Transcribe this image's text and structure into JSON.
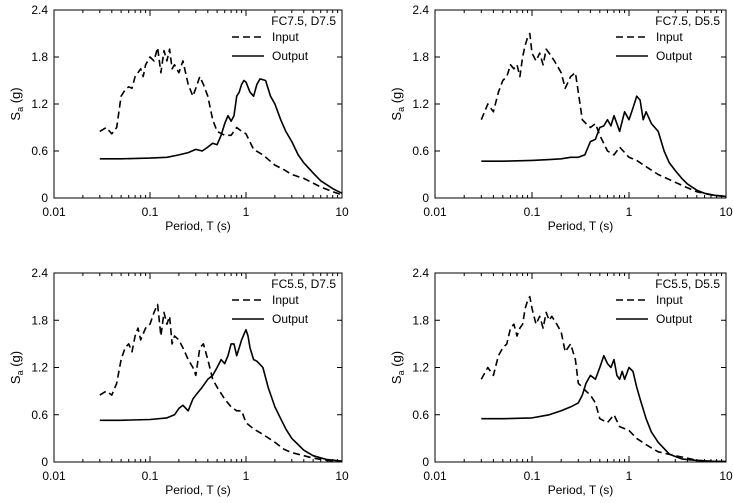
{
  "chart_data": [
    {
      "type": "line",
      "xscale": "log",
      "xlim": [
        0.01,
        10
      ],
      "ylim": [
        0,
        2.4
      ],
      "xticks": [
        0.01,
        0.1,
        1,
        10
      ],
      "xtick_labels": [
        "0.01",
        "0.1",
        "1",
        "10"
      ],
      "yticks": [
        0,
        0.6,
        1.2,
        1.8,
        2.4
      ],
      "ytick_labels": [
        "0",
        "0.6",
        "1.2",
        "1.8",
        "2.4"
      ],
      "xlabel": "Period, T (s)",
      "ylabel_main": "S",
      "ylabel_sub": "a",
      "ylabel_unit": " (g)",
      "legend_title": "FC7.5, D7.5",
      "legend_position": "top-right",
      "grid": false,
      "series": [
        {
          "name": "Input",
          "style": "dashed",
          "x": [
            0.03,
            0.035,
            0.04,
            0.045,
            0.05,
            0.055,
            0.06,
            0.065,
            0.07,
            0.075,
            0.08,
            0.085,
            0.09,
            0.1,
            0.11,
            0.12,
            0.13,
            0.14,
            0.15,
            0.16,
            0.17,
            0.18,
            0.2,
            0.22,
            0.25,
            0.28,
            0.3,
            0.33,
            0.36,
            0.4,
            0.45,
            0.5,
            0.6,
            0.7,
            0.8,
            0.9,
            1.0,
            1.2,
            1.5,
            2,
            2.5,
            3,
            4,
            5,
            6,
            8,
            10
          ],
          "y": [
            0.85,
            0.9,
            0.82,
            0.9,
            1.3,
            1.38,
            1.42,
            1.4,
            1.55,
            1.6,
            1.65,
            1.55,
            1.7,
            1.8,
            1.75,
            1.92,
            1.6,
            1.88,
            1.75,
            1.9,
            1.65,
            1.7,
            1.6,
            1.75,
            1.45,
            1.3,
            1.4,
            1.55,
            1.45,
            1.3,
            1.0,
            0.85,
            0.8,
            0.8,
            0.9,
            0.85,
            0.82,
            0.62,
            0.55,
            0.42,
            0.36,
            0.3,
            0.25,
            0.19,
            0.14,
            0.08,
            0.04
          ]
        },
        {
          "name": "Output",
          "style": "solid",
          "x": [
            0.03,
            0.05,
            0.1,
            0.15,
            0.2,
            0.25,
            0.3,
            0.35,
            0.4,
            0.45,
            0.5,
            0.55,
            0.6,
            0.65,
            0.7,
            0.75,
            0.8,
            0.85,
            0.9,
            0.95,
            1.0,
            1.1,
            1.2,
            1.3,
            1.4,
            1.6,
            1.8,
            2.0,
            2.3,
            2.6,
            3.0,
            3.5,
            4,
            5,
            6,
            8,
            10
          ],
          "y": [
            0.5,
            0.5,
            0.51,
            0.52,
            0.55,
            0.58,
            0.62,
            0.6,
            0.65,
            0.7,
            0.68,
            0.8,
            0.95,
            1.05,
            0.98,
            1.05,
            1.3,
            1.35,
            1.45,
            1.5,
            1.48,
            1.35,
            1.3,
            1.45,
            1.52,
            1.5,
            1.3,
            1.2,
            1.0,
            0.85,
            0.72,
            0.55,
            0.45,
            0.32,
            0.22,
            0.12,
            0.06
          ]
        }
      ]
    },
    {
      "type": "line",
      "xscale": "log",
      "xlim": [
        0.01,
        10
      ],
      "ylim": [
        0,
        2.4
      ],
      "xticks": [
        0.01,
        0.1,
        1,
        10
      ],
      "xtick_labels": [
        "0.01",
        "0.1",
        "1",
        "10"
      ],
      "yticks": [
        0,
        0.6,
        1.2,
        1.8,
        2.4
      ],
      "ytick_labels": [
        "0",
        "0.6",
        "1.2",
        "1.8",
        "2.4"
      ],
      "xlabel": "Period, T (s)",
      "ylabel_main": "S",
      "ylabel_sub": "a",
      "ylabel_unit": " (g)",
      "legend_title": "FC7.5, D5.5",
      "legend_position": "top-right",
      "grid": false,
      "series": [
        {
          "name": "Input",
          "style": "dashed",
          "x": [
            0.03,
            0.035,
            0.04,
            0.045,
            0.05,
            0.055,
            0.06,
            0.065,
            0.07,
            0.075,
            0.08,
            0.085,
            0.09,
            0.095,
            0.1,
            0.11,
            0.12,
            0.13,
            0.14,
            0.15,
            0.17,
            0.2,
            0.22,
            0.25,
            0.28,
            0.3,
            0.33,
            0.36,
            0.4,
            0.45,
            0.5,
            0.6,
            0.7,
            0.8,
            1.0,
            1.2,
            1.5,
            2,
            3,
            4,
            5,
            7,
            10
          ],
          "y": [
            1.0,
            1.2,
            1.1,
            1.35,
            1.5,
            1.55,
            1.7,
            1.65,
            1.7,
            1.55,
            1.8,
            1.95,
            2.05,
            2.1,
            1.85,
            1.75,
            1.85,
            1.7,
            1.9,
            1.85,
            1.75,
            1.6,
            1.4,
            1.55,
            1.6,
            1.35,
            1.0,
            0.95,
            0.9,
            0.95,
            0.8,
            0.6,
            0.55,
            0.65,
            0.52,
            0.48,
            0.4,
            0.3,
            0.2,
            0.13,
            0.08,
            0.04,
            0.02
          ]
        },
        {
          "name": "Output",
          "style": "solid",
          "x": [
            0.03,
            0.05,
            0.1,
            0.15,
            0.2,
            0.25,
            0.3,
            0.35,
            0.4,
            0.45,
            0.5,
            0.55,
            0.6,
            0.65,
            0.7,
            0.75,
            0.8,
            0.9,
            1.0,
            1.1,
            1.2,
            1.3,
            1.4,
            1.5,
            1.7,
            2.0,
            2.3,
            2.6,
            3,
            3.5,
            4,
            5,
            6,
            8,
            10
          ],
          "y": [
            0.47,
            0.47,
            0.48,
            0.49,
            0.5,
            0.52,
            0.52,
            0.55,
            0.72,
            0.75,
            0.9,
            0.92,
            1.0,
            0.92,
            1.05,
            0.95,
            0.85,
            1.1,
            1.0,
            1.15,
            1.3,
            1.25,
            1.0,
            1.1,
            0.95,
            0.85,
            0.6,
            0.45,
            0.35,
            0.25,
            0.18,
            0.1,
            0.06,
            0.03,
            0.02
          ]
        }
      ]
    },
    {
      "type": "line",
      "xscale": "log",
      "xlim": [
        0.01,
        10
      ],
      "ylim": [
        0,
        2.4
      ],
      "xticks": [
        0.01,
        0.1,
        1,
        10
      ],
      "xtick_labels": [
        "0.01",
        "0.1",
        "1",
        "10"
      ],
      "yticks": [
        0,
        0.6,
        1.2,
        1.8,
        2.4
      ],
      "ytick_labels": [
        "0",
        "0.6",
        "1.2",
        "1.8",
        "2.4"
      ],
      "xlabel": "Period, T (s)",
      "ylabel_main": "S",
      "ylabel_sub": "a",
      "ylabel_unit": " (g)",
      "legend_title": "FC5.5, D7.5",
      "legend_position": "top-right",
      "grid": false,
      "series": [
        {
          "name": "Input",
          "style": "dashed",
          "x": [
            0.03,
            0.035,
            0.04,
            0.045,
            0.05,
            0.055,
            0.06,
            0.065,
            0.07,
            0.075,
            0.08,
            0.09,
            0.1,
            0.11,
            0.12,
            0.13,
            0.14,
            0.15,
            0.16,
            0.17,
            0.18,
            0.2,
            0.22,
            0.25,
            0.28,
            0.3,
            0.33,
            0.36,
            0.4,
            0.45,
            0.5,
            0.6,
            0.7,
            0.8,
            0.9,
            1.0,
            1.2,
            1.5,
            2,
            2.5,
            3,
            4,
            5,
            7,
            10
          ],
          "y": [
            0.85,
            0.9,
            0.85,
            1.0,
            1.3,
            1.45,
            1.5,
            1.4,
            1.6,
            1.7,
            1.55,
            1.7,
            1.75,
            1.9,
            2.0,
            1.6,
            1.9,
            1.75,
            1.85,
            1.5,
            1.6,
            1.55,
            1.45,
            1.3,
            1.2,
            1.1,
            1.45,
            1.5,
            1.3,
            1.05,
            0.95,
            0.8,
            0.7,
            0.65,
            0.65,
            0.5,
            0.42,
            0.35,
            0.25,
            0.16,
            0.12,
            0.08,
            0.05,
            0.02,
            0.01
          ]
        },
        {
          "name": "Output",
          "style": "solid",
          "x": [
            0.03,
            0.05,
            0.1,
            0.15,
            0.18,
            0.2,
            0.22,
            0.25,
            0.28,
            0.3,
            0.35,
            0.4,
            0.45,
            0.5,
            0.55,
            0.6,
            0.65,
            0.7,
            0.75,
            0.8,
            0.85,
            0.9,
            0.95,
            1.0,
            1.05,
            1.1,
            1.2,
            1.3,
            1.5,
            1.7,
            2.0,
            2.3,
            2.6,
            3,
            3.5,
            4,
            5,
            7,
            10
          ],
          "y": [
            0.53,
            0.53,
            0.54,
            0.56,
            0.6,
            0.68,
            0.72,
            0.65,
            0.8,
            0.85,
            0.95,
            1.05,
            1.1,
            1.2,
            1.3,
            1.25,
            1.35,
            1.5,
            1.5,
            1.35,
            1.45,
            1.55,
            1.62,
            1.68,
            1.6,
            1.45,
            1.3,
            1.28,
            1.2,
            0.95,
            0.7,
            0.55,
            0.42,
            0.3,
            0.22,
            0.15,
            0.08,
            0.03,
            0.01
          ]
        }
      ]
    },
    {
      "type": "line",
      "xscale": "log",
      "xlim": [
        0.01,
        10
      ],
      "ylim": [
        0,
        2.4
      ],
      "xticks": [
        0.01,
        0.1,
        1,
        10
      ],
      "xtick_labels": [
        "0.01",
        "0.1",
        "1",
        "10"
      ],
      "yticks": [
        0,
        0.6,
        1.2,
        1.8,
        2.4
      ],
      "ytick_labels": [
        "0",
        "0.6",
        "1.2",
        "1.8",
        "2.4"
      ],
      "xlabel": "Period, T (s)",
      "ylabel_main": "S",
      "ylabel_sub": "a",
      "ylabel_unit": " (g)",
      "legend_title": "FC5.5, D5.5",
      "legend_position": "top-right",
      "grid": false,
      "series": [
        {
          "name": "Input",
          "style": "dashed",
          "x": [
            0.03,
            0.035,
            0.04,
            0.045,
            0.05,
            0.055,
            0.06,
            0.065,
            0.07,
            0.075,
            0.08,
            0.085,
            0.09,
            0.095,
            0.1,
            0.11,
            0.12,
            0.13,
            0.14,
            0.15,
            0.16,
            0.18,
            0.2,
            0.22,
            0.25,
            0.28,
            0.3,
            0.33,
            0.36,
            0.4,
            0.45,
            0.5,
            0.6,
            0.7,
            0.8,
            1.0,
            1.2,
            1.5,
            2,
            3,
            4,
            5,
            7,
            10
          ],
          "y": [
            1.05,
            1.2,
            1.1,
            1.35,
            1.45,
            1.5,
            1.7,
            1.75,
            1.6,
            1.7,
            1.75,
            1.95,
            2.05,
            2.1,
            1.95,
            1.75,
            1.85,
            1.7,
            1.9,
            1.8,
            1.85,
            1.75,
            1.65,
            1.4,
            1.5,
            1.3,
            1.0,
            0.95,
            0.9,
            0.85,
            0.75,
            0.55,
            0.5,
            0.6,
            0.45,
            0.4,
            0.3,
            0.22,
            0.13,
            0.08,
            0.05,
            0.02,
            0.01,
            0.005
          ]
        },
        {
          "name": "Output",
          "style": "solid",
          "x": [
            0.03,
            0.05,
            0.1,
            0.15,
            0.2,
            0.25,
            0.3,
            0.33,
            0.36,
            0.4,
            0.45,
            0.5,
            0.55,
            0.6,
            0.65,
            0.7,
            0.75,
            0.8,
            0.85,
            0.9,
            1.0,
            1.1,
            1.2,
            1.3,
            1.5,
            1.7,
            2.0,
            2.3,
            2.6,
            3,
            3.5,
            4,
            5,
            7,
            10
          ],
          "y": [
            0.55,
            0.55,
            0.56,
            0.6,
            0.65,
            0.7,
            0.75,
            0.85,
            1.0,
            1.1,
            1.05,
            1.2,
            1.35,
            1.25,
            1.2,
            1.3,
            1.1,
            1.05,
            1.15,
            1.05,
            1.2,
            1.15,
            0.95,
            0.8,
            0.55,
            0.38,
            0.25,
            0.17,
            0.1,
            0.07,
            0.04,
            0.03,
            0.02,
            0.01,
            0.005
          ]
        }
      ]
    }
  ]
}
